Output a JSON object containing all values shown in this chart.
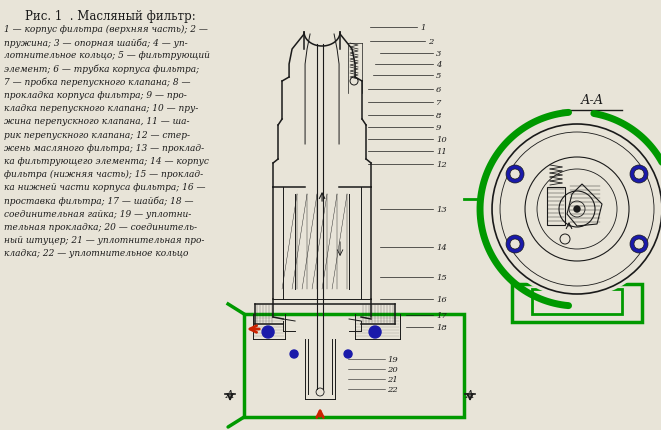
{
  "title": "Рис. 1  . Масляный фильтр:",
  "background_color": "#e8e4d8",
  "text_color": "#1a1a1a",
  "legend_lines": [
    "1 — корпус фильтра (верхняя часть); 2 —",
    "пружина; 3 — опорная шайба; 4 — уп-",
    "лотнительное кольцо; 5 — фильтрующий",
    "элемент; 6 — трубка корпуса фильтра;",
    "7 — пробка перепускного клапана; 8 —",
    "прокладка корпуса фильтра; 9 — про-",
    "кладка перепускного клапана; 10 — пру-",
    "жина перепускного клапана, 11 — ша-",
    "рик перепускного клапана; 12 — стер-",
    "жень масляного фильтра; 13 — проклад-",
    "ка фильтрующего элемента; 14 — корпус",
    "фильтра (нижняя часть); 15 — проклад-",
    "ка нижней части корпуса фильтра; 16 —",
    "проставка фильтра; 17 — шайба; 18 —",
    "соединительная гайка; 19 — уплотни-",
    "тельная прокладка; 20 — соединитель-",
    "ный штуцер; 21 — уплотнительная про-",
    "кладка; 22 — уплотнительное кольцо"
  ],
  "green_color": "#009900",
  "blue_color": "#1a1aaa",
  "red_color": "#cc2200",
  "dark_color": "#1a1a1a",
  "mid_color": "#555555",
  "section_label": "А-А"
}
